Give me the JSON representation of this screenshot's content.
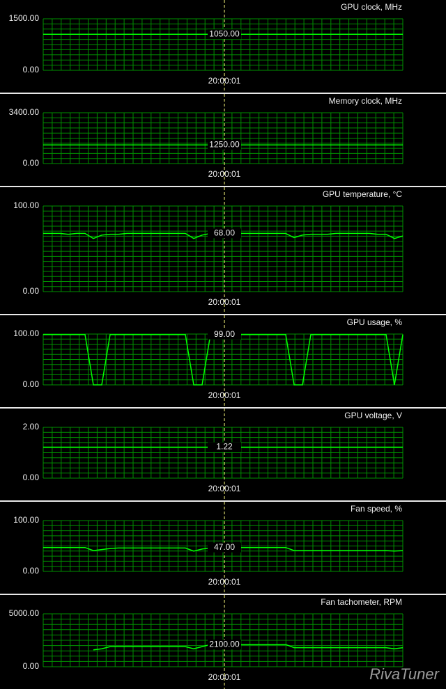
{
  "chart_data": [
    {
      "type": "line",
      "title": "GPU clock, MHz",
      "color": "#00ff00",
      "grid": true,
      "ylim": [
        0,
        1500
      ],
      "yticks": [
        {
          "value": 0,
          "label": "0.00"
        },
        {
          "value": 1500,
          "label": "1500.00"
        }
      ],
      "cursor": {
        "time": "20:00:01",
        "value": 1050,
        "label": "1050.00"
      },
      "values": [
        1050,
        1050,
        1050,
        1050,
        1050,
        1050,
        1050,
        1050,
        1050,
        1050,
        1050,
        1050,
        1050,
        1050,
        1050,
        1050,
        1050,
        1050,
        1050,
        1050,
        1050,
        1050,
        1050,
        1050,
        1050,
        1050,
        1050,
        1050,
        1050,
        1050,
        1050,
        1050,
        1050,
        1050,
        1050,
        1050,
        1050,
        1050,
        1050,
        1050,
        1050,
        1050,
        1050,
        1050
      ]
    },
    {
      "type": "line",
      "title": "Memory clock, MHz",
      "color": "#00ff00",
      "grid": true,
      "ylim": [
        0,
        3400
      ],
      "yticks": [
        {
          "value": 0,
          "label": "0.00"
        },
        {
          "value": 3400,
          "label": "3400.00"
        }
      ],
      "cursor": {
        "time": "20:00:01",
        "value": 1250,
        "label": "1250.00"
      },
      "values": [
        1250,
        1250,
        1250,
        1250,
        1250,
        1250,
        1250,
        1250,
        1250,
        1250,
        1250,
        1250,
        1250,
        1250,
        1250,
        1250,
        1250,
        1250,
        1250,
        1250,
        1250,
        1250,
        1250,
        1250,
        1250,
        1250,
        1250,
        1250,
        1250,
        1250,
        1250,
        1250,
        1250,
        1250,
        1250,
        1250,
        1250,
        1250,
        1250,
        1250,
        1250,
        1250,
        1250,
        1250
      ]
    },
    {
      "type": "line",
      "title": "GPU temperature, °C",
      "color": "#00ff00",
      "grid": true,
      "ylim": [
        0,
        100
      ],
      "yticks": [
        {
          "value": 0,
          "label": "0.00"
        },
        {
          "value": 100,
          "label": "100.00"
        }
      ],
      "cursor": {
        "time": "20:00:01",
        "value": 68,
        "label": "68.00"
      },
      "values": [
        68,
        68,
        68,
        67,
        68,
        68,
        62,
        66,
        67,
        67,
        68,
        68,
        68,
        68,
        68,
        68,
        68,
        68,
        62,
        66,
        68,
        68,
        68,
        68,
        68,
        68,
        68,
        68,
        68,
        68,
        63,
        66,
        67,
        67,
        67,
        68,
        68,
        68,
        68,
        68,
        67,
        67,
        62,
        65
      ]
    },
    {
      "type": "line",
      "title": "GPU usage, %",
      "color": "#00ff00",
      "grid": true,
      "ylim": [
        0,
        100
      ],
      "yticks": [
        {
          "value": 0,
          "label": "0.00"
        },
        {
          "value": 100,
          "label": "100.00"
        }
      ],
      "cursor": {
        "time": "20:00:01",
        "value": 99,
        "label": "99.00"
      },
      "values": [
        99,
        99,
        99,
        99,
        99,
        99,
        0,
        0,
        99,
        99,
        99,
        99,
        99,
        99,
        99,
        99,
        99,
        99,
        0,
        0,
        99,
        99,
        99,
        99,
        99,
        99,
        99,
        99,
        99,
        99,
        0,
        0,
        99,
        99,
        99,
        99,
        99,
        99,
        99,
        99,
        99,
        99,
        0,
        99
      ]
    },
    {
      "type": "line",
      "title": "GPU voltage, V",
      "color": "#00ff00",
      "grid": true,
      "ylim": [
        0,
        2
      ],
      "yticks": [
        {
          "value": 0,
          "label": "0.00"
        },
        {
          "value": 2,
          "label": "2.00"
        }
      ],
      "cursor": {
        "time": "20:00:01",
        "value": 1.22,
        "label": "1.22"
      },
      "values": [
        1.22,
        1.22,
        1.22,
        1.22,
        1.22,
        1.22,
        1.22,
        1.22,
        1.22,
        1.22,
        1.22,
        1.22,
        1.22,
        1.22,
        1.22,
        1.22,
        1.22,
        1.22,
        1.22,
        1.22,
        1.22,
        1.22,
        1.22,
        1.22,
        1.22,
        1.22,
        1.22,
        1.22,
        1.22,
        1.22,
        1.22,
        1.22,
        1.22,
        1.22,
        1.22,
        1.22,
        1.22,
        1.22,
        1.22,
        1.22,
        1.22,
        1.22,
        1.22,
        1.22
      ]
    },
    {
      "type": "line",
      "title": "Fan speed, %",
      "color": "#00ff00",
      "grid": true,
      "ylim": [
        0,
        100
      ],
      "yticks": [
        {
          "value": 0,
          "label": "0.00"
        },
        {
          "value": 100,
          "label": "100.00"
        }
      ],
      "cursor": {
        "time": "20:00:01",
        "value": 47,
        "label": "47.00"
      },
      "values": [
        47,
        47,
        47,
        47,
        47,
        47,
        41,
        43,
        45,
        46,
        46,
        46,
        46,
        46,
        46,
        46,
        46,
        46,
        40,
        44,
        46,
        47,
        47,
        47,
        47,
        47,
        47,
        47,
        47,
        47,
        41,
        41,
        41,
        41,
        41,
        41,
        41,
        41,
        41,
        41,
        41,
        41,
        40,
        41
      ]
    },
    {
      "type": "line",
      "title": "Fan tachometer, RPM",
      "color": "#00ff00",
      "grid": true,
      "ylim": [
        0,
        5000
      ],
      "yticks": [
        {
          "value": 0,
          "label": "0.00"
        },
        {
          "value": 5000,
          "label": "5000.00"
        }
      ],
      "cursor": {
        "time": "20:00:01",
        "value": 2100,
        "label": "2100.00"
      },
      "values": [
        null,
        null,
        null,
        null,
        null,
        null,
        1600,
        1700,
        1900,
        1900,
        1900,
        1900,
        1900,
        1900,
        1900,
        1900,
        1900,
        1900,
        1700,
        1900,
        2100,
        2100,
        2100,
        2100,
        2100,
        2100,
        2100,
        2100,
        2100,
        2100,
        1800,
        1800,
        1800,
        1800,
        1800,
        1800,
        1800,
        1800,
        1800,
        1800,
        1800,
        1800,
        1700,
        1800
      ]
    }
  ],
  "watermark": "RivaTuner"
}
